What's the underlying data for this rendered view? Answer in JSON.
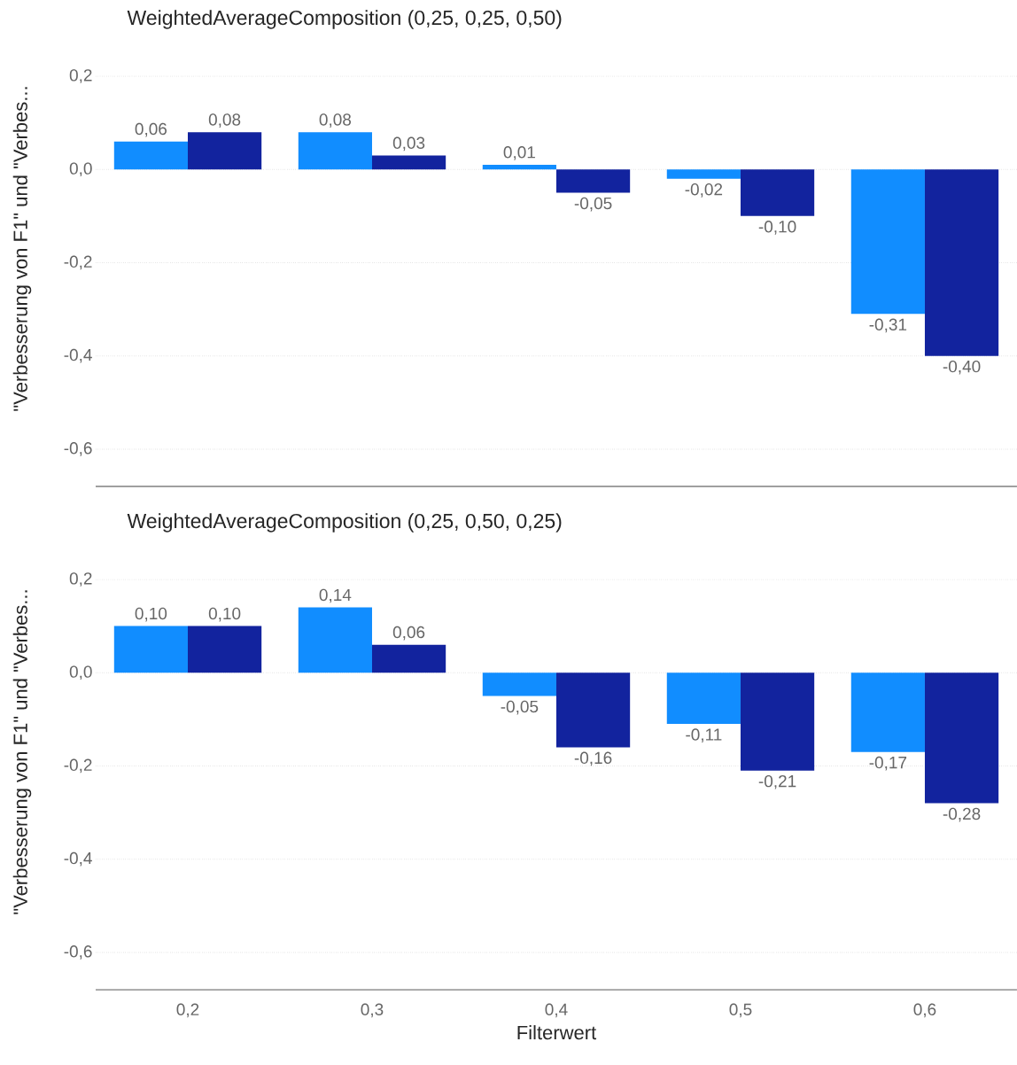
{
  "chart_data": [
    {
      "type": "bar",
      "title": "WeightedAverageComposition (0,25, 0,25, 0,50)",
      "ylabel": "\"Verbesserung von F1\" und \"Verbes...",
      "categories": [
        "0,2",
        "0,3",
        "0,4",
        "0,5",
        "0,6"
      ],
      "tick_labels": "y",
      "grid": "y",
      "ylim": [
        -0.68,
        0.2
      ],
      "yticks": [
        {
          "value": 0.2,
          "label": "0,2"
        },
        {
          "value": 0,
          "label": "0,0"
        },
        {
          "value": -0.2,
          "label": "-0,2"
        },
        {
          "value": -0.4,
          "label": "-0,4"
        },
        {
          "value": -0.6,
          "label": "-0,6"
        }
      ],
      "series": [
        {
          "color": "#118dff",
          "values": [
            0.06,
            0.08,
            0.01,
            -0.02,
            -0.31
          ],
          "value_labels": [
            "0,06",
            "0,08",
            "0,01",
            "-0,02",
            "-0,31"
          ]
        },
        {
          "color": "#12239e",
          "values": [
            0.08,
            0.03,
            -0.05,
            -0.1,
            -0.4
          ],
          "value_labels": [
            "0,08",
            "0,03",
            "-0,05",
            "-0,10",
            "-0,40"
          ]
        }
      ]
    },
    {
      "type": "bar",
      "title": "WeightedAverageComposition (0,25, 0,50, 0,25)",
      "xlabel": "Filterwert",
      "ylabel": "\"Verbesserung von F1\" und \"Verbes...",
      "categories": [
        "0,2",
        "0,3",
        "0,4",
        "0,5",
        "0,6"
      ],
      "grid": "y",
      "ylim": [
        -0.68,
        0.2
      ],
      "yticks": [
        {
          "value": 0.2,
          "label": "0,2"
        },
        {
          "value": 0,
          "label": "0,0"
        },
        {
          "value": -0.2,
          "label": "-0,2"
        },
        {
          "value": -0.4,
          "label": "-0,4"
        },
        {
          "value": -0.6,
          "label": "-0,6"
        }
      ],
      "series": [
        {
          "color": "#118dff",
          "values": [
            0.1,
            0.14,
            -0.05,
            -0.11,
            -0.17
          ],
          "value_labels": [
            "0,10",
            "0,14",
            "-0,05",
            "-0,11",
            "-0,17"
          ]
        },
        {
          "color": "#12239e",
          "values": [
            0.1,
            0.06,
            -0.16,
            -0.21,
            -0.28
          ],
          "value_labels": [
            "0,10",
            "0,06",
            "-0,16",
            "-0,21",
            "-0,28"
          ]
        }
      ]
    }
  ]
}
